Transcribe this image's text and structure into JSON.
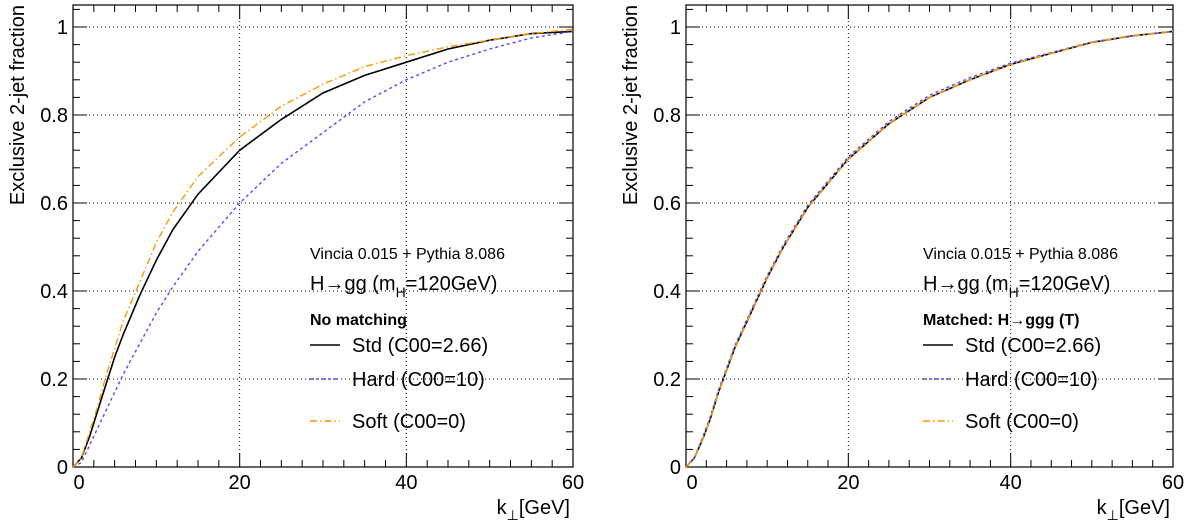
{
  "colors": {
    "std": "#000000",
    "hard": "#4d4dff",
    "soft": "#ff9900",
    "grid": "#000000"
  },
  "chart_data": [
    {
      "type": "line",
      "xlabel": "k⊥[GeV]",
      "ylabel": "Exclusive 2-jet fraction",
      "xlim": [
        0,
        60
      ],
      "ylim": [
        0,
        1.05
      ],
      "xticks": [
        "0",
        "20",
        "40",
        "60"
      ],
      "yticks": [
        "0",
        "0.2",
        "0.4",
        "0.6",
        "0.8",
        "1"
      ],
      "grid": true,
      "legend_position": "lower-right",
      "annotations": [
        "Vincia 0.015 + Pythia 8.086",
        "H→gg (mH=120GeV)",
        "No matching"
      ],
      "x": [
        0,
        1,
        2,
        3,
        4,
        5,
        6,
        8,
        10,
        12,
        15,
        20,
        25,
        30,
        35,
        40,
        45,
        50,
        55,
        60
      ],
      "series": [
        {
          "name": "Std (C00=2.66)",
          "style": "solid",
          "color_key": "std",
          "values": [
            0,
            0.02,
            0.07,
            0.13,
            0.19,
            0.25,
            0.3,
            0.39,
            0.47,
            0.54,
            0.62,
            0.72,
            0.79,
            0.85,
            0.89,
            0.92,
            0.95,
            0.97,
            0.985,
            0.99
          ]
        },
        {
          "name": "Hard (C00=10)",
          "style": "dashed",
          "color_key": "hard",
          "values": [
            0,
            0.01,
            0.05,
            0.09,
            0.13,
            0.17,
            0.21,
            0.28,
            0.35,
            0.41,
            0.49,
            0.6,
            0.69,
            0.76,
            0.83,
            0.88,
            0.92,
            0.95,
            0.975,
            0.99
          ]
        },
        {
          "name": "Soft (C00=0)",
          "style": "dashdot",
          "color_key": "soft",
          "values": [
            0,
            0.02,
            0.08,
            0.14,
            0.21,
            0.27,
            0.33,
            0.42,
            0.51,
            0.58,
            0.66,
            0.75,
            0.82,
            0.87,
            0.91,
            0.935,
            0.955,
            0.97,
            0.985,
            0.995
          ]
        }
      ]
    },
    {
      "type": "line",
      "xlabel": "k⊥[GeV]",
      "ylabel": "Exclusive 2-jet fraction",
      "xlim": [
        0,
        60
      ],
      "ylim": [
        0,
        1.05
      ],
      "xticks": [
        "0",
        "20",
        "40",
        "60"
      ],
      "yticks": [
        "0",
        "0.2",
        "0.4",
        "0.6",
        "0.8",
        "1"
      ],
      "grid": true,
      "legend_position": "lower-right",
      "annotations": [
        "Vincia 0.015 + Pythia 8.086",
        "H→gg (mH=120GeV)",
        "Matched: H→ggg (T)"
      ],
      "x": [
        0,
        1,
        2,
        3,
        4,
        5,
        6,
        8,
        10,
        12,
        15,
        20,
        25,
        30,
        35,
        40,
        45,
        50,
        55,
        60
      ],
      "series": [
        {
          "name": "Std (C00=2.66)",
          "style": "solid",
          "color_key": "std",
          "values": [
            0,
            0.02,
            0.06,
            0.11,
            0.17,
            0.22,
            0.27,
            0.35,
            0.43,
            0.5,
            0.59,
            0.7,
            0.78,
            0.84,
            0.88,
            0.915,
            0.94,
            0.965,
            0.98,
            0.99
          ]
        },
        {
          "name": "Hard (C00=10)",
          "style": "dashed",
          "color_key": "hard",
          "values": [
            0,
            0.02,
            0.065,
            0.115,
            0.175,
            0.225,
            0.275,
            0.355,
            0.435,
            0.505,
            0.595,
            0.705,
            0.785,
            0.845,
            0.885,
            0.918,
            0.942,
            0.966,
            0.98,
            0.99
          ]
        },
        {
          "name": "Soft (C00=0)",
          "style": "dashdot",
          "color_key": "soft",
          "values": [
            0,
            0.02,
            0.06,
            0.11,
            0.17,
            0.22,
            0.27,
            0.35,
            0.43,
            0.5,
            0.59,
            0.7,
            0.78,
            0.84,
            0.88,
            0.915,
            0.94,
            0.965,
            0.98,
            0.99
          ]
        }
      ]
    }
  ]
}
